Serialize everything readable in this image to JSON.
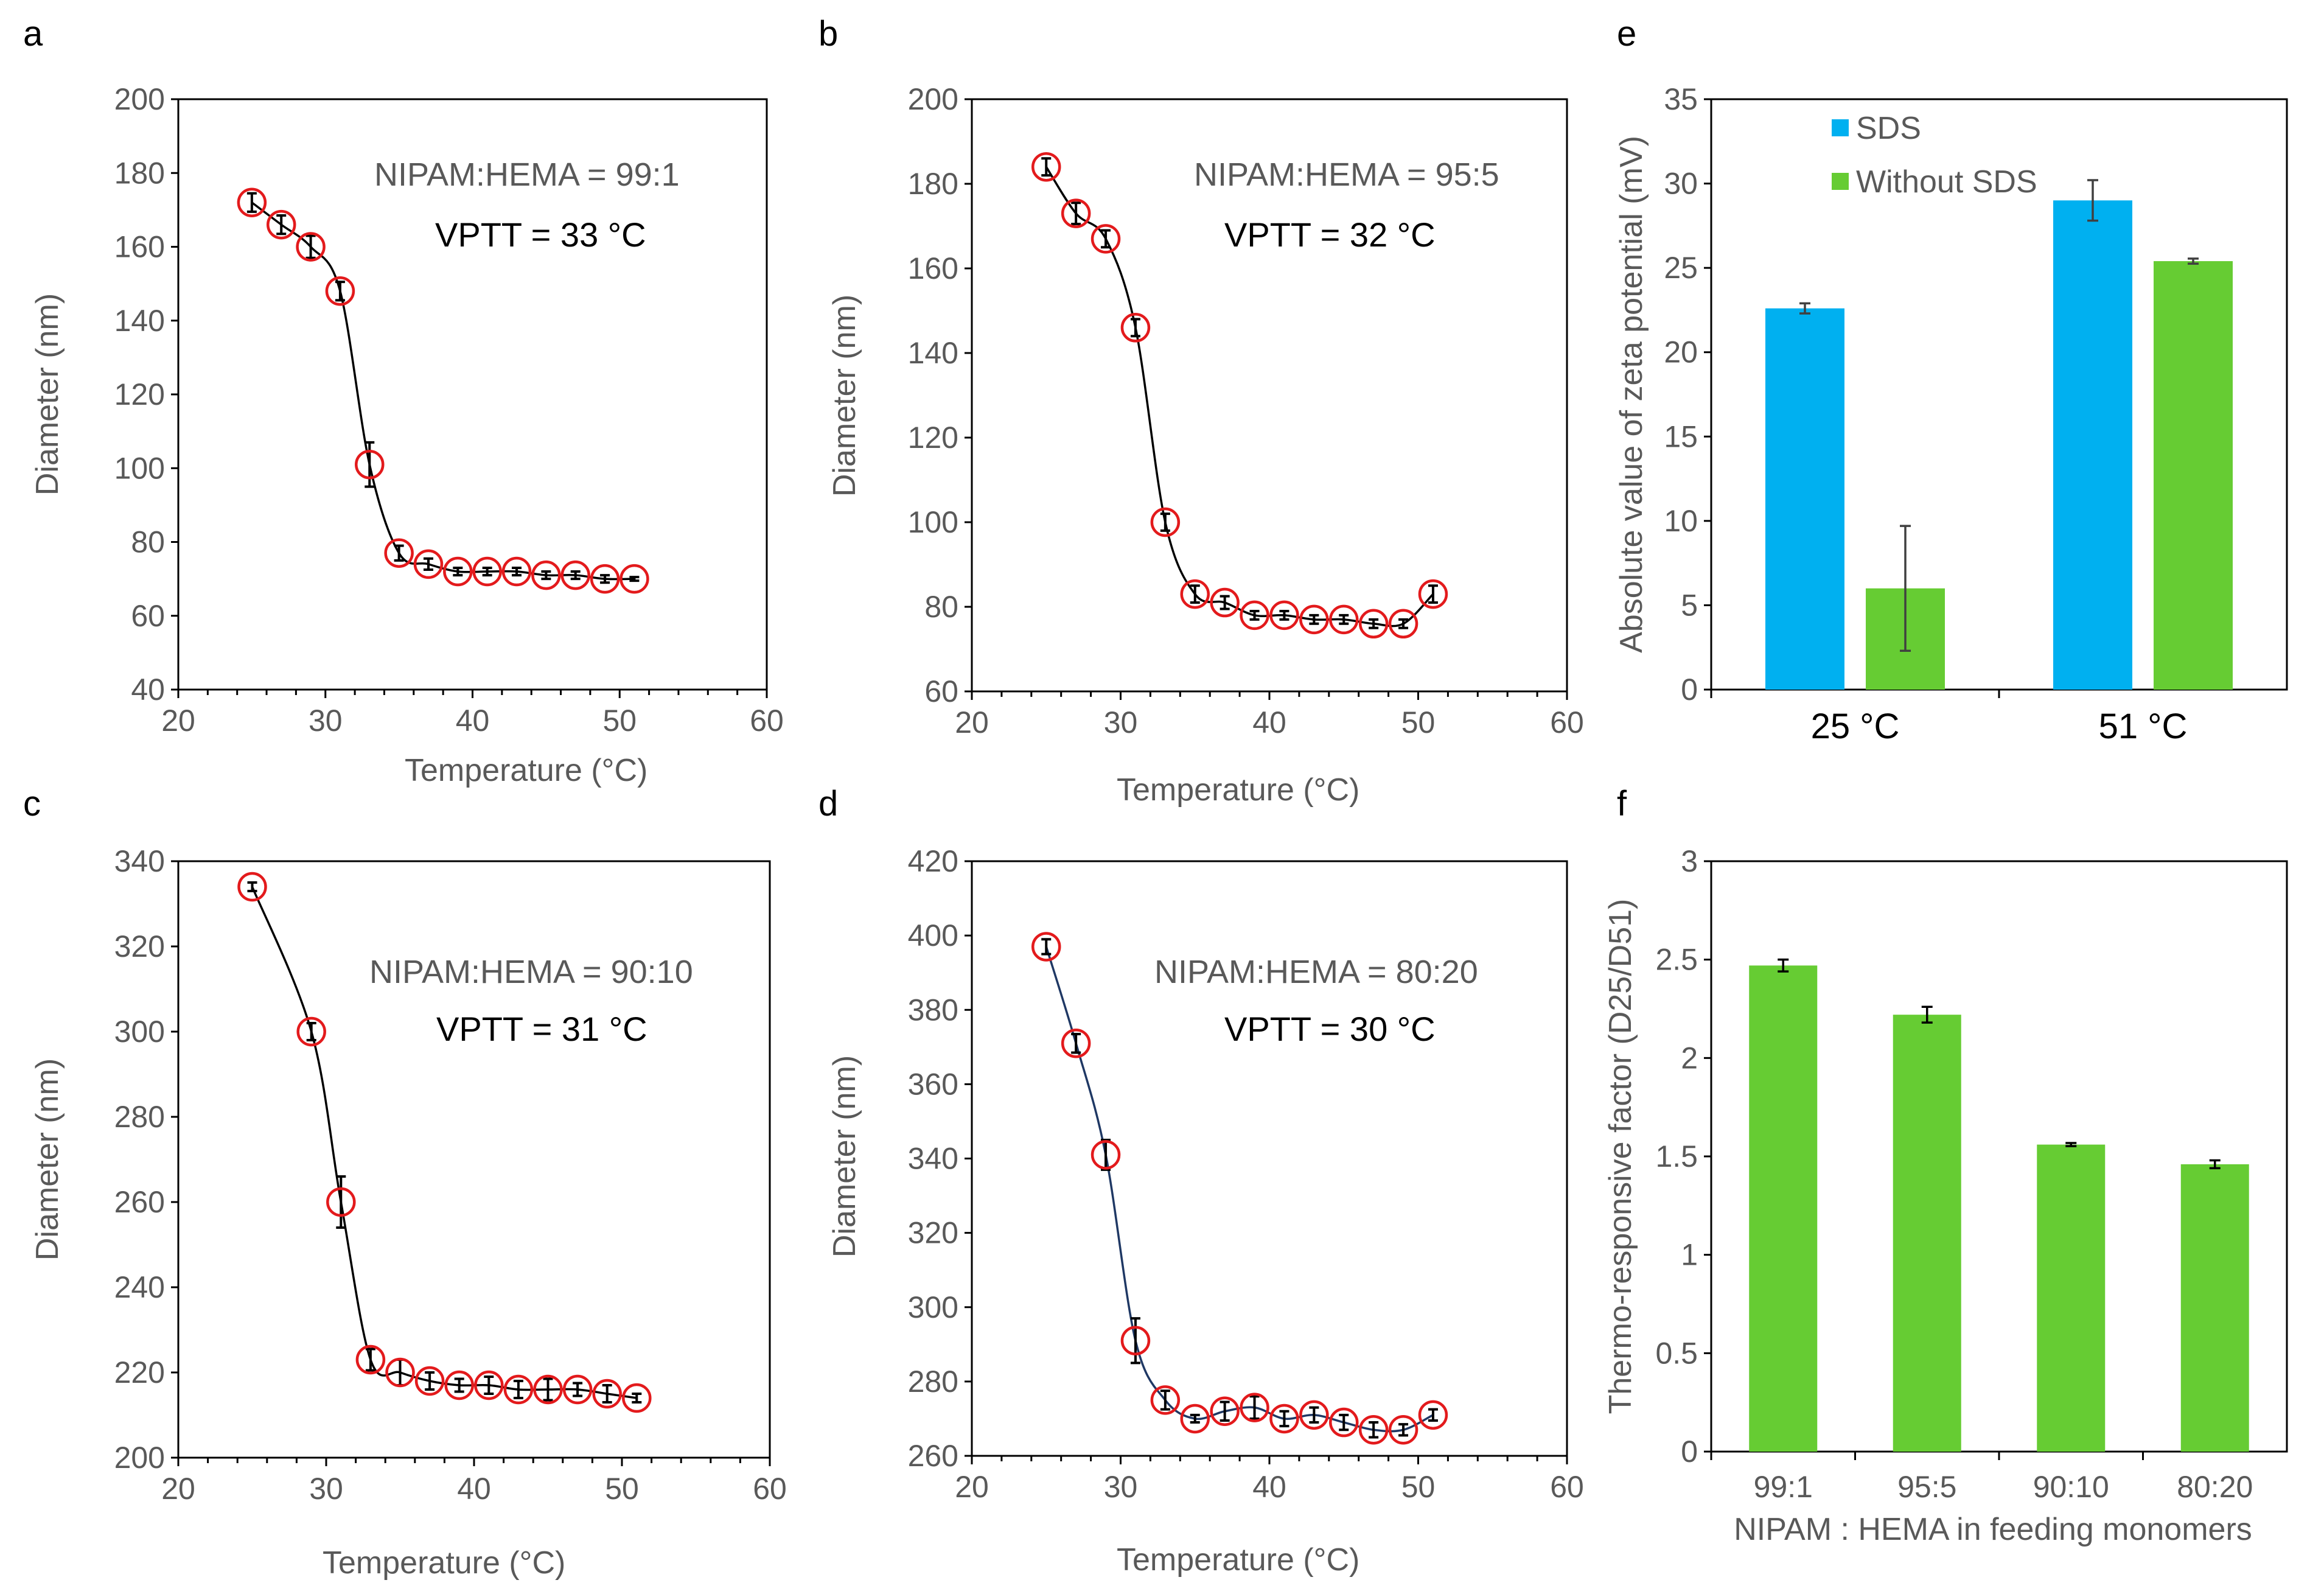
{
  "chart_data": [
    {
      "panel": "a",
      "type": "scatter",
      "xlabel": "Temperature (°C)",
      "ylabel": "Diameter (nm)",
      "xlim": [
        20,
        60
      ],
      "ylim": [
        40,
        200
      ],
      "xticks": [
        20,
        30,
        40,
        50,
        60
      ],
      "yticks": [
        40,
        60,
        80,
        100,
        120,
        140,
        160,
        180,
        200
      ],
      "annotation": "NIPAM:HEMA = 99:1",
      "vptt": "VPTT = 33 °C",
      "x": [
        25,
        27,
        29,
        31,
        33,
        35,
        37,
        39,
        41,
        43,
        45,
        47,
        49,
        51
      ],
      "y": [
        172,
        166,
        160,
        148,
        101,
        77,
        74,
        72,
        72,
        72,
        71,
        71,
        70,
        70
      ],
      "err": [
        2.5,
        2.5,
        3,
        2.5,
        6,
        2,
        1.5,
        1,
        1,
        1,
        1,
        1,
        1,
        0.5
      ]
    },
    {
      "panel": "b",
      "type": "scatter",
      "xlabel": "Temperature (°C)",
      "ylabel": "Diameter (nm)",
      "xlim": [
        20,
        60
      ],
      "ylim": [
        60,
        200
      ],
      "xticks": [
        20,
        30,
        40,
        50,
        60
      ],
      "yticks": [
        60,
        80,
        100,
        120,
        140,
        160,
        180,
        200
      ],
      "annotation": "NIPAM:HEMA = 95:5",
      "vptt": "VPTT = 32 °C",
      "x": [
        25,
        27,
        29,
        31,
        33,
        35,
        37,
        39,
        41,
        43,
        45,
        47,
        49,
        51
      ],
      "y": [
        184,
        173,
        167,
        146,
        100,
        83,
        81,
        78,
        78,
        77,
        77,
        76,
        76,
        83
      ],
      "err": [
        2,
        2.5,
        2,
        2,
        2,
        2,
        1.5,
        1,
        1,
        1,
        1,
        1,
        1,
        2
      ]
    },
    {
      "panel": "c",
      "type": "scatter",
      "xlabel": "Temperature (°C)",
      "ylabel": "Diameter (nm)",
      "xlim": [
        20,
        60
      ],
      "ylim": [
        200,
        340
      ],
      "xticks": [
        20,
        30,
        40,
        50,
        60
      ],
      "yticks": [
        200,
        220,
        240,
        260,
        280,
        300,
        320,
        340
      ],
      "annotation": "NIPAM:HEMA = 90:10",
      "vptt": "VPTT = 31 °C",
      "x": [
        25,
        29,
        31,
        33,
        35,
        37,
        39,
        41,
        43,
        45,
        47,
        49,
        51
      ],
      "y": [
        334,
        300,
        260,
        223,
        220,
        218,
        217,
        217,
        216,
        216,
        216,
        215,
        214
      ],
      "err": [
        1,
        2,
        6,
        2.5,
        3,
        2,
        1.5,
        2,
        2,
        2.5,
        1.5,
        2,
        1
      ]
    },
    {
      "panel": "d",
      "type": "scatter",
      "xlabel": "Temperature (°C)",
      "ylabel": "Diameter (nm)",
      "xlim": [
        20,
        60
      ],
      "ylim": [
        260,
        420
      ],
      "xticks": [
        20,
        30,
        40,
        50,
        60
      ],
      "yticks": [
        260,
        280,
        300,
        320,
        340,
        360,
        380,
        400,
        420
      ],
      "annotation": "NIPAM:HEMA = 80:20",
      "vptt": "VPTT = 30 °C",
      "x": [
        25,
        27,
        29,
        31,
        33,
        35,
        37,
        39,
        41,
        43,
        45,
        47,
        49,
        51
      ],
      "y": [
        397,
        371,
        341,
        291,
        275,
        270,
        272,
        273,
        270,
        271,
        269,
        267,
        267,
        271
      ],
      "err": [
        2,
        2.5,
        4,
        6,
        2.5,
        1,
        2.5,
        3,
        2,
        2,
        2,
        2,
        1.5,
        1.5
      ]
    },
    {
      "panel": "e",
      "type": "bar",
      "ylabel": "Absolute value of zeta potential (mV)",
      "categories": [
        "25 °C",
        "51 °C"
      ],
      "ylim": [
        0,
        35
      ],
      "yticks": [
        0,
        5,
        10,
        15,
        20,
        25,
        30,
        35
      ],
      "legend_position": "top-left",
      "series": [
        {
          "name": "SDS",
          "color": "#00B0F0",
          "values": [
            22.6,
            29.0
          ],
          "err": [
            0.3,
            1.2
          ]
        },
        {
          "name": "Without SDS",
          "color": "#66CC33",
          "values": [
            6.0,
            25.4
          ],
          "err": [
            3.7,
            0.15
          ]
        }
      ]
    },
    {
      "panel": "f",
      "type": "bar",
      "xlabel": "NIPAM : HEMA in feeding monomers",
      "ylabel": "Thermo-responsive factor (D25/D51)",
      "categories": [
        "99:1",
        "95:5",
        "90:10",
        "80:20"
      ],
      "ylim": [
        0,
        3
      ],
      "yticks": [
        0,
        0.5,
        1,
        1.5,
        2,
        2.5,
        3
      ],
      "series": [
        {
          "name": "Thermo-responsive factor",
          "color": "#66CC33",
          "values": [
            2.47,
            2.22,
            1.56,
            1.46
          ],
          "err": [
            0.03,
            0.04,
            0.008,
            0.02
          ]
        }
      ]
    }
  ]
}
